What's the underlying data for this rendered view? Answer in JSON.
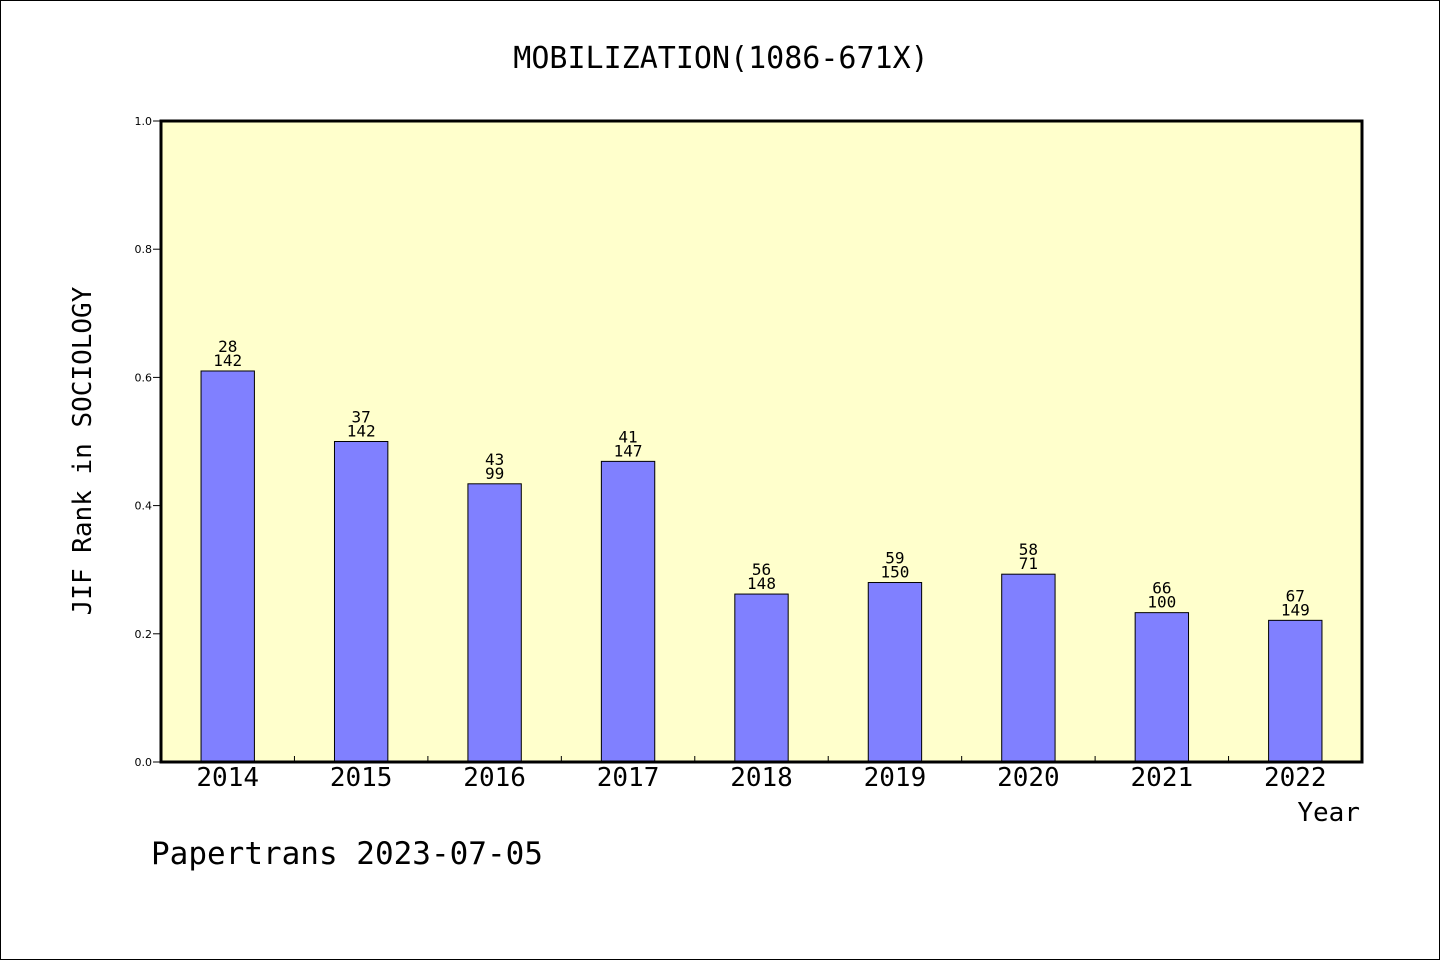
{
  "footer": "Papertrans 2023-07-05",
  "colors": {
    "plot_background": "#ffffcc",
    "bar_fill": "#8080ff",
    "bar_stroke": "#000000"
  },
  "chart_data": {
    "type": "bar",
    "title": "MOBILIZATION(1086-671X)",
    "xlabel": "Year",
    "ylabel": "JIF Rank in SOCIOLOGY",
    "ylim": [
      0,
      1.0
    ],
    "yticks": [
      "0.0",
      "0.2",
      "0.4",
      "0.6",
      "0.8",
      "1.0"
    ],
    "categories": [
      "2014",
      "2015",
      "2016",
      "2017",
      "2018",
      "2019",
      "2020",
      "2021",
      "2022"
    ],
    "values": [
      0.61,
      0.5,
      0.434,
      0.469,
      0.262,
      0.28,
      0.293,
      0.233,
      0.221
    ],
    "rank_labels": [
      "28",
      "37",
      "43",
      "41",
      "56",
      "59",
      "58",
      "66",
      "67"
    ],
    "total_labels": [
      "142",
      "142",
      "99",
      "147",
      "148",
      "150",
      "71",
      "100",
      "149"
    ],
    "grid": false,
    "legend": "none"
  }
}
